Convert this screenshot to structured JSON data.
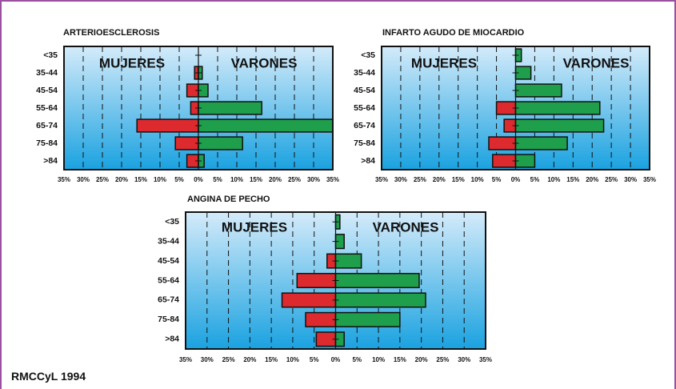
{
  "colors": {
    "mujeres": "#dd2a2f",
    "varones": "#1f9e4c",
    "bg_top": "#d4ebfa",
    "bg_bottom": "#1aa2e0",
    "frame": "#9b4f9f"
  },
  "source_label": "RMCCyL 1994",
  "chart_data": [
    {
      "type": "bar",
      "title": "ARTERIOESCLEROSIS",
      "left_label": "MUJERES",
      "right_label": "VARONES",
      "categories": [
        "<35",
        "35-44",
        "45-54",
        "55-64",
        "65-74",
        "75-84",
        ">84"
      ],
      "x_ticks": [
        "35%",
        "30%",
        "25%",
        "20%",
        "15%",
        "10%",
        "5%",
        "0%",
        "5%",
        "10%",
        "15%",
        "20%",
        "25%",
        "30%",
        "35%"
      ],
      "xlim": [
        -35,
        35
      ],
      "series": [
        {
          "name": "MUJERES",
          "values": [
            0,
            1,
            3,
            2,
            16,
            6,
            3
          ]
        },
        {
          "name": "VARONES",
          "values": [
            0,
            1,
            2.5,
            16.5,
            35,
            11.5,
            1.5
          ]
        }
      ]
    },
    {
      "type": "bar",
      "title": "INFARTO AGUDO DE MIOCARDIO",
      "left_label": "MUJERES",
      "right_label": "VARONES",
      "categories": [
        "<35",
        "35-44",
        "45-54",
        "55-64",
        "65-74",
        "75-84",
        ">84"
      ],
      "x_ticks": [
        "35%",
        "30%",
        "25%",
        "20%",
        "15%",
        "10%",
        "5%",
        "0%",
        "5%",
        "10%",
        "15%",
        "20%",
        "25%",
        "30%",
        "35%"
      ],
      "xlim": [
        -35,
        35
      ],
      "series": [
        {
          "name": "MUJERES",
          "values": [
            0,
            0,
            0,
            5,
            3,
            7,
            6
          ]
        },
        {
          "name": "VARONES",
          "values": [
            1.5,
            4,
            12,
            22,
            23,
            13.5,
            5
          ]
        }
      ]
    },
    {
      "type": "bar",
      "title": "ANGINA DE PECHO",
      "left_label": "MUJERES",
      "right_label": "VARONES",
      "categories": [
        "<35",
        "35-44",
        "45-54",
        "55-64",
        "65-74",
        "75-84",
        ">84"
      ],
      "x_ticks": [
        "35%",
        "30%",
        "25%",
        "20%",
        "15%",
        "10%",
        "5%",
        "0%",
        "5%",
        "10%",
        "15%",
        "20%",
        "25%",
        "30%",
        "35%"
      ],
      "xlim": [
        -35,
        35
      ],
      "series": [
        {
          "name": "MUJERES",
          "values": [
            0,
            0,
            2,
            9,
            12.5,
            7,
            4.5
          ]
        },
        {
          "name": "VARONES",
          "values": [
            1,
            2,
            6,
            19.5,
            21,
            15,
            2
          ]
        }
      ]
    }
  ]
}
